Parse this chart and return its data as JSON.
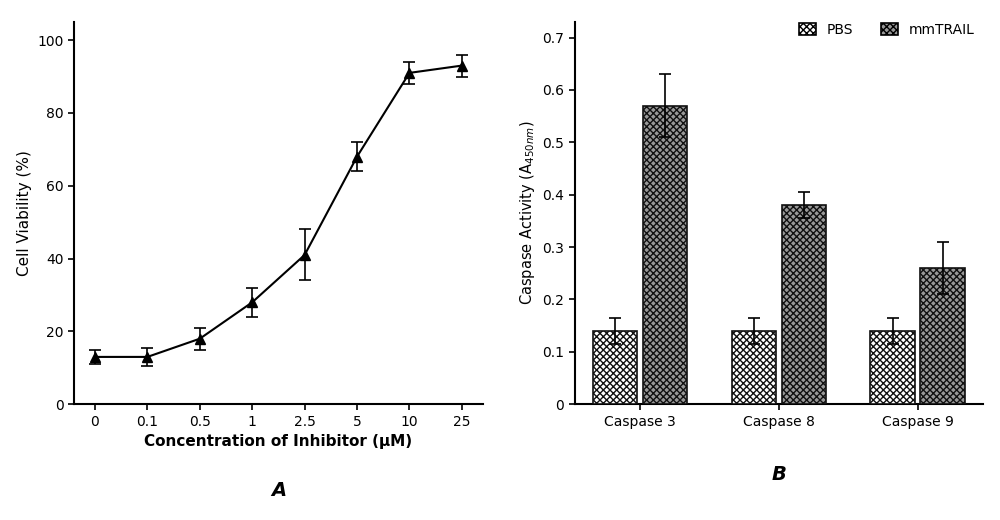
{
  "panel_A": {
    "x_positions": [
      0,
      1,
      2,
      3,
      4,
      5,
      6,
      7
    ],
    "y": [
      13,
      13,
      18,
      28,
      41,
      68,
      91,
      93
    ],
    "yerr": [
      2,
      2.5,
      3,
      4,
      7,
      4,
      3,
      3
    ],
    "xlabel": "Concentration of Inhibitor (μM)",
    "ylabel": "Cell Viability (%)",
    "label": "A",
    "xtick_labels": [
      "0",
      "0.1",
      "0.5",
      "1",
      "2.5",
      "5",
      "10",
      "25"
    ],
    "yticks": [
      0,
      20,
      40,
      60,
      80,
      100
    ],
    "ylim": [
      0,
      105
    ],
    "xlim": [
      -0.4,
      7.4
    ]
  },
  "panel_B": {
    "categories": [
      "Caspase 3",
      "Caspase 8",
      "Caspase 9"
    ],
    "pbs_values": [
      0.14,
      0.14,
      0.14
    ],
    "pbs_yerr": [
      0.025,
      0.025,
      0.025
    ],
    "trail_values": [
      0.57,
      0.38,
      0.26
    ],
    "trail_yerr": [
      0.06,
      0.025,
      0.05
    ],
    "ylabel": "Caspase Activity (A$_{450nm}$)",
    "label": "B",
    "yticks": [
      0,
      0.1,
      0.2,
      0.3,
      0.4,
      0.5,
      0.6,
      0.7
    ],
    "ylim": [
      0,
      0.73
    ],
    "legend_pbs": "PBS",
    "legend_trail": "mmTRAIL",
    "bar_width": 0.32,
    "pbs_color": "#ffffff",
    "trail_color": "#999999",
    "edge_color": "#111111"
  }
}
